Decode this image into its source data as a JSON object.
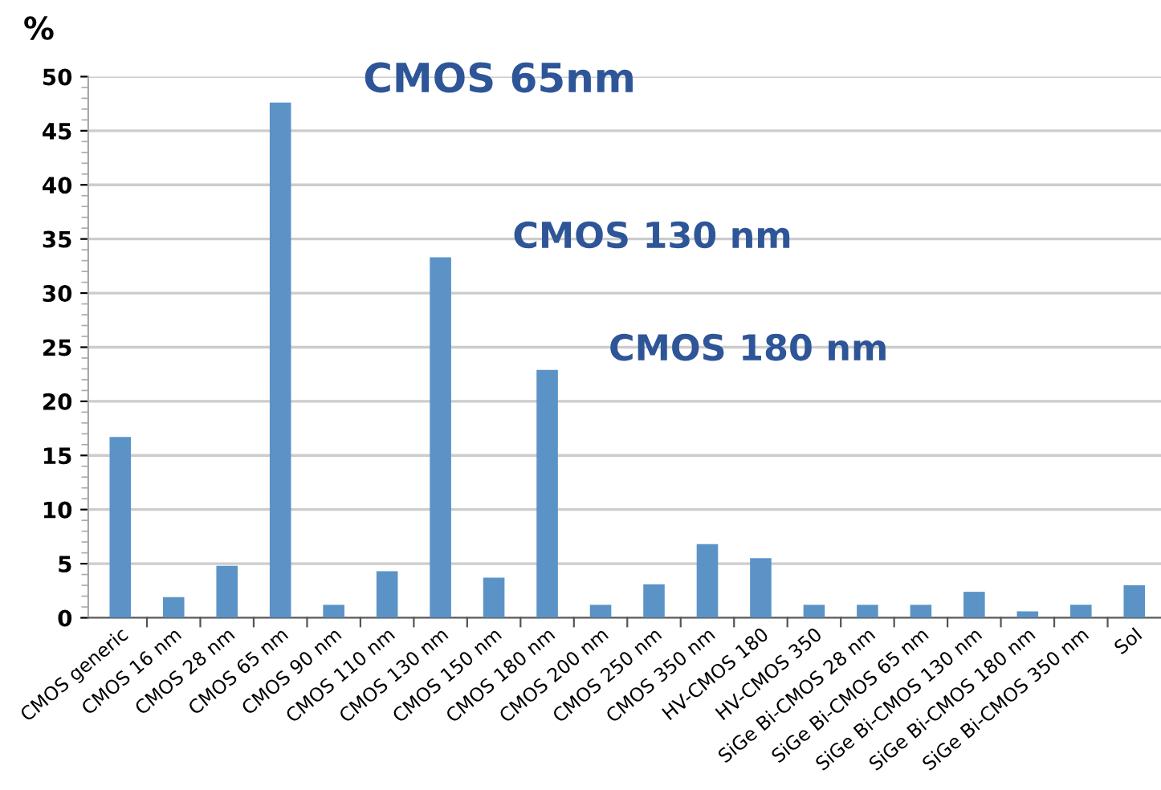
{
  "chart_data": {
    "type": "bar",
    "ylabel": "%",
    "categories": [
      "CMOS generic",
      "CMOS 16 nm",
      "CMOS 28 nm",
      "CMOS 65 nm",
      "CMOS 90 nm",
      "CMOS 110 nm",
      "CMOS 130 nm",
      "CMOS 150 nm",
      "CMOS 180 nm",
      "CMOS 200 nm",
      "CMOS 250 nm",
      "CMOS 350 nm",
      "HV-CMOS 180",
      "HV-CMOS 350",
      "SiGe Bi-CMOS 28 nm",
      "SiGe Bi-CMOS 65 nm",
      "SiGe Bi-CMOS 130 nm",
      "SiGe Bi-CMOS 180 nm",
      "SiGe Bi-CMOS 350 nm",
      "SoI"
    ],
    "values": [
      16.7,
      1.9,
      4.8,
      47.6,
      1.2,
      4.3,
      33.3,
      3.7,
      22.9,
      1.2,
      3.1,
      6.8,
      5.5,
      1.2,
      1.2,
      1.2,
      2.4,
      0.6,
      1.2,
      3.0
    ],
    "color": "#5b93c7",
    "ylim": [
      0,
      50
    ],
    "yticks": [
      0,
      5,
      10,
      15,
      20,
      25,
      30,
      35,
      40,
      45,
      50
    ],
    "grid": "y",
    "annotations": [
      {
        "text": "CMOS 65nm",
        "x": "CMOS 65 nm",
        "y": 47.6
      },
      {
        "text": "CMOS 130 nm",
        "x": "CMOS 130 nm",
        "y": 33.3
      },
      {
        "text": "CMOS 180 nm",
        "x": "CMOS 180 nm",
        "y": 22.9
      }
    ]
  }
}
